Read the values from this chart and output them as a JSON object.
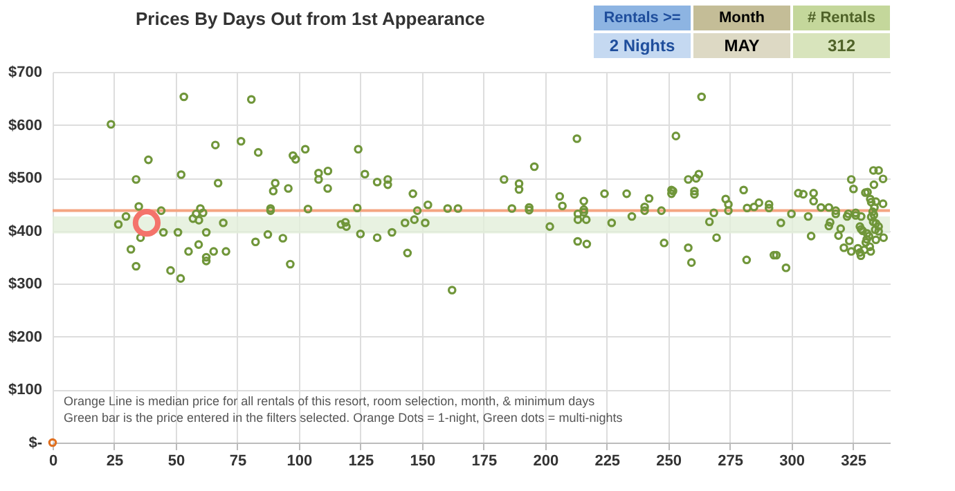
{
  "chart_data": {
    "type": "scatter",
    "title": "Prices By Days Out from 1st Appearance",
    "xlim": [
      0,
      340
    ],
    "xticks": [
      0,
      25,
      50,
      75,
      100,
      125,
      150,
      175,
      200,
      225,
      250,
      275,
      300,
      325
    ],
    "ylim": [
      0,
      700
    ],
    "yticks": [
      {
        "value": 0,
        "label": "$-"
      },
      {
        "value": 100,
        "label": "$100"
      },
      {
        "value": 200,
        "label": "$200"
      },
      {
        "value": 300,
        "label": "$300"
      },
      {
        "value": 400,
        "label": "$400"
      },
      {
        "value": 500,
        "label": "$500"
      },
      {
        "value": 600,
        "label": "$600"
      },
      {
        "value": 700,
        "label": "$700"
      }
    ],
    "grid": true,
    "marker": "circle",
    "ref_lines": [
      {
        "axis": "y",
        "value": 438,
        "color": "#f4a582"
      }
    ],
    "bands": [
      {
        "axis": "y",
        "from": 395,
        "to": 427,
        "color": "#e2efd9"
      }
    ],
    "annotations": [
      "Orange Line is median price for all rentals of this resort, room selection, month, & minimum days",
      "Green bar is the price entered in the filters selected. Orange Dots = 1-night, Green dots = multi-nights",
      "Rentals >=",
      "2 Nights",
      "Month",
      "MAY",
      "# Rentals",
      "312"
    ],
    "series": [
      {
        "color": "#70963a",
        "x": [
          23.7,
          53.3,
          80.7,
          38.9,
          66.1,
          76.5,
          83.5,
          97.6,
          98.7,
          102.6,
          33.9,
          52.2,
          67.2,
          90.4,
          89.6,
          95.7,
          108,
          108,
          35,
          29.8,
          26.7,
          44.1,
          35.7,
          31.8,
          33.9,
          45,
          50.9,
          47.9,
          52,
          60,
          61.1,
          58.3,
          57,
          59.4,
          62.4,
          59.3,
          55.2,
          62.4,
          62.4,
          65.4,
          70.4,
          69.3,
          82.4,
          87.4,
          93.5,
          96.5,
          88.5,
          88.5,
          103.7,
          124.1,
          111.8,
          111.7,
          126.8,
          131.8,
          136.1,
          136.1,
          146.3,
          148.1,
          152.4,
          160.4,
          164.6,
          123.7,
          117.1,
          118.9,
          119.3,
          125,
          131.8,
          137.8,
          143.1,
          146.9,
          151.3,
          144.1,
          162.2,
          183.3,
          189.4,
          189.4,
          195.6,
          186.5,
          193.5,
          193.5,
          201.9,
          205.9,
          207,
          212.9,
          213.3,
          213.3,
          213.2,
          215.7,
          215.7,
          216.7,
          215.7,
          216.9,
          224.1,
          227,
          233.1,
          235.2,
          242.2,
          240.4,
          240.4,
          247.2,
          248.3,
          251.3,
          251.9,
          251.3,
          253.1,
          263.5,
          258.1,
          261.3,
          262.4,
          260.6,
          260.6,
          258.1,
          259.4,
          266.7,
          268.5,
          269.6,
          273.3,
          274.4,
          274.4,
          280.6,
          282,
          281.8,
          284.8,
          286.8,
          290.9,
          290.9,
          295.7,
          292.9,
          293.9,
          297.8,
          300,
          302.8,
          304.8,
          306.8,
          308,
          309,
          309,
          312,
          315.2,
          318,
          318,
          315.7,
          315.2,
          320,
          319.1,
          321.3,
          323.1,
          322.6,
          324.3,
          325.2,
          324.3,
          323.5,
          326.1,
          326.1,
          328.3,
          327.8,
          328.3,
          328.9,
          327,
          327.8,
          328.2,
          329.6,
          330.2,
          330.6,
          331.5,
          330.7,
          332.2,
          331.8,
          330,
          330.9,
          332,
          332.4,
          333.3,
          335.4,
          333.5,
          337.2,
          334.3,
          333.7,
          333,
          333.5,
          332.4,
          333.2,
          334.3,
          335.4,
          334,
          335.4,
          337.2,
          337.4,
          334.3
        ],
        "values": [
          601,
          653,
          648,
          534,
          562,
          569,
          548,
          542,
          535,
          554,
          497,
          506,
          490,
          490,
          475,
          480,
          509,
          497,
          446,
          427,
          412,
          438,
          387,
          365,
          333,
          397,
          397,
          325,
          310,
          442,
          434,
          432,
          423,
          420,
          397,
          374,
          361,
          350,
          343,
          361,
          361,
          415,
          379,
          393,
          386,
          337,
          442,
          438,
          441,
          554,
          513,
          480,
          507,
          492,
          497,
          487,
          470,
          438,
          449,
          442,
          442,
          443,
          412,
          416,
          408,
          394,
          387,
          397,
          415,
          421,
          415,
          358,
          288,
          497,
          489,
          478,
          521,
          442,
          444,
          439,
          408,
          465,
          447,
          574,
          432,
          421,
          380,
          456,
          440,
          421,
          435,
          375,
          470,
          415,
          470,
          427,
          461,
          445,
          438,
          438,
          377,
          477,
          475,
          470,
          579,
          653,
          497,
          499,
          507,
          475,
          469,
          368,
          340,
          417,
          434,
          387,
          460,
          450,
          438,
          477,
          443,
          345,
          445,
          453,
          450,
          443,
          415,
          354,
          354,
          330,
          432,
          471,
          469,
          427,
          390,
          471,
          456,
          444,
          444,
          438,
          432,
          416,
          409,
          404,
          391,
          368,
          432,
          427,
          497,
          479,
          361,
          381,
          434,
          429,
          427,
          408,
          403,
          400,
          367,
          359,
          353,
          364,
          378,
          384,
          390,
          395,
          361,
          370,
          472,
          473,
          460,
          454,
          514,
          514,
          487,
          498,
          455,
          444,
          436,
          430,
          426,
          417,
          414,
          408,
          402,
          399,
          451,
          387,
          383
        ]
      },
      {
        "color": "#e07020",
        "x": [
          0
        ],
        "values": [
          0
        ]
      },
      {
        "type": "bubble",
        "color": "#f4736b",
        "x": [
          38.2
        ],
        "values": [
          415
        ],
        "sizes": [
          1
        ]
      }
    ]
  }
}
